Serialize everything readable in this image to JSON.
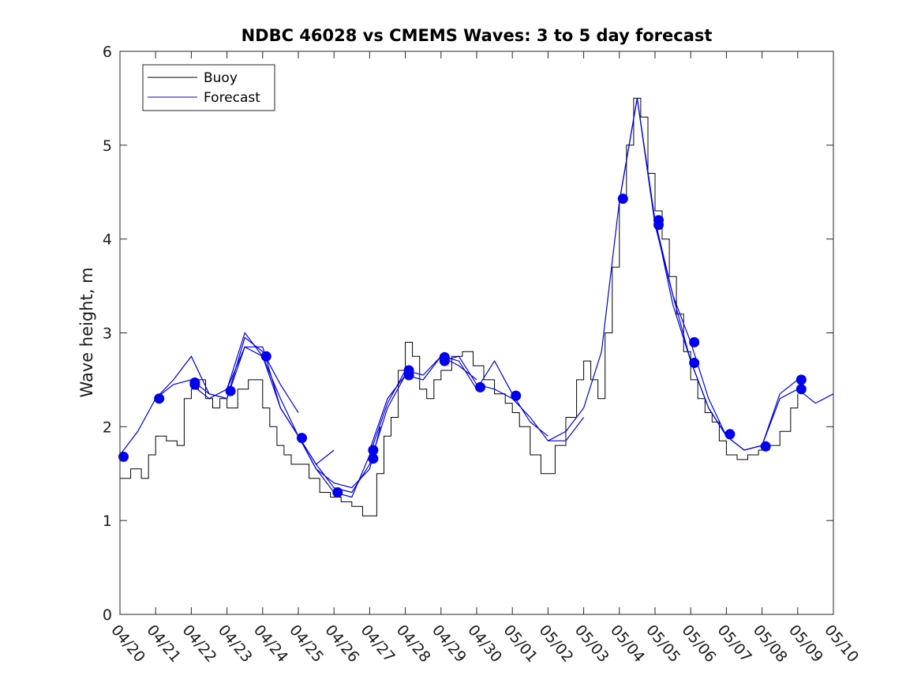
{
  "chart_data": {
    "type": "line",
    "title": "NDBC 46028 vs CMEMS Waves: 3 to 5 day forecast",
    "xlabel": "",
    "ylabel": "Wave height, m",
    "xlim": [
      0,
      20
    ],
    "ylim": [
      0,
      6
    ],
    "x_tick_labels": [
      "04/20",
      "04/21",
      "04/22",
      "04/23",
      "04/24",
      "04/25",
      "04/26",
      "04/27",
      "04/28",
      "04/29",
      "04/30",
      "05/01",
      "05/02",
      "05/03",
      "05/04",
      "05/05",
      "05/06",
      "05/07",
      "05/08",
      "05/09",
      "05/10"
    ],
    "y_ticks": [
      0,
      1,
      2,
      3,
      4,
      5,
      6
    ],
    "grid": false,
    "legend_position": "top-left",
    "legend": [
      {
        "label": "Buoy",
        "color": "#000000"
      },
      {
        "label": "Forecast",
        "color": "#0000dd"
      }
    ],
    "colors": {
      "buoy": "#000000",
      "forecast": "#0000dd",
      "marker": "#0000ee"
    },
    "buoy": {
      "name": "Buoy",
      "x": [
        0,
        0.3,
        0.6,
        0.8,
        1.0,
        1.3,
        1.6,
        1.8,
        2.0,
        2.2,
        2.4,
        2.6,
        2.8,
        3.0,
        3.3,
        3.6,
        3.8,
        4.0,
        4.2,
        4.4,
        4.6,
        4.8,
        5.0,
        5.3,
        5.6,
        5.9,
        6.2,
        6.5,
        6.8,
        7.0,
        7.2,
        7.4,
        7.6,
        7.8,
        8.0,
        8.2,
        8.4,
        8.6,
        8.8,
        9.0,
        9.3,
        9.6,
        9.9,
        10.2,
        10.5,
        10.8,
        11.0,
        11.2,
        11.5,
        11.8,
        12.0,
        12.2,
        12.5,
        12.8,
        13.0,
        13.2,
        13.4,
        13.6,
        13.8,
        14.0,
        14.2,
        14.4,
        14.6,
        14.8,
        15.0,
        15.2,
        15.4,
        15.6,
        15.8,
        16.0,
        16.2,
        16.4,
        16.6,
        16.8,
        17.0,
        17.3,
        17.6,
        17.9,
        18.2,
        18.5,
        18.8,
        19.0
      ],
      "y": [
        1.45,
        1.55,
        1.45,
        1.7,
        1.9,
        1.85,
        1.8,
        2.3,
        2.4,
        2.5,
        2.3,
        2.2,
        2.3,
        2.2,
        2.4,
        2.5,
        2.5,
        2.2,
        2.0,
        1.8,
        1.7,
        1.6,
        1.6,
        1.45,
        1.3,
        1.25,
        1.2,
        1.15,
        1.05,
        1.05,
        1.5,
        1.9,
        2.1,
        2.6,
        2.9,
        2.75,
        2.4,
        2.3,
        2.5,
        2.6,
        2.75,
        2.8,
        2.65,
        2.5,
        2.35,
        2.25,
        2.15,
        2.0,
        1.7,
        1.5,
        1.5,
        1.8,
        2.1,
        2.5,
        2.7,
        2.5,
        2.3,
        3.0,
        3.7,
        4.4,
        5.0,
        5.5,
        5.3,
        4.7,
        4.3,
        4.0,
        3.6,
        3.2,
        2.8,
        2.5,
        2.3,
        2.15,
        2.05,
        1.85,
        1.7,
        1.65,
        1.7,
        1.75,
        1.8,
        1.95,
        2.2,
        2.35
      ]
    },
    "forecast_series": [
      {
        "name": "Forecast",
        "x": [
          0,
          0.5,
          1.0,
          1.5,
          2.0,
          2.5,
          3.0,
          3.5,
          4.0,
          4.5,
          5.0
        ],
        "y": [
          1.7,
          1.95,
          2.3,
          2.45,
          2.5,
          2.35,
          2.3,
          2.95,
          2.8,
          2.45,
          2.15
        ]
      },
      {
        "name": "Forecast",
        "x": [
          1.0,
          1.5,
          2.0,
          2.5,
          3.0,
          3.5,
          4.0,
          4.5,
          5.0,
          5.5,
          6.0
        ],
        "y": [
          2.3,
          2.5,
          2.75,
          2.35,
          2.3,
          2.85,
          2.85,
          2.2,
          1.9,
          1.6,
          1.75
        ]
      },
      {
        "name": "Forecast",
        "x": [
          2.0,
          2.5,
          3.0,
          3.5,
          4.0,
          4.5,
          5.0,
          5.5,
          6.0,
          6.5,
          7.0,
          7.3
        ],
        "y": [
          2.45,
          2.3,
          2.4,
          3.0,
          2.75,
          2.3,
          1.9,
          1.55,
          1.4,
          1.35,
          1.55,
          2.0
        ]
      },
      {
        "name": "Forecast",
        "x": [
          3.0,
          3.5,
          4.0,
          4.5,
          5.0,
          5.5,
          6.0,
          6.5,
          7.0,
          7.5,
          8.0
        ],
        "y": [
          2.4,
          2.85,
          2.75,
          2.2,
          1.9,
          1.6,
          1.35,
          1.3,
          1.6,
          2.2,
          2.55
        ]
      },
      {
        "name": "Forecast",
        "x": [
          5.0,
          5.5,
          6.0,
          6.5,
          7.0,
          7.5,
          8.0,
          8.5,
          9.0,
          9.5,
          10.0
        ],
        "y": [
          1.9,
          1.55,
          1.3,
          1.25,
          1.7,
          2.25,
          2.6,
          2.55,
          2.75,
          2.65,
          2.5
        ]
      },
      {
        "name": "Forecast",
        "x": [
          7.0,
          7.5,
          8.0,
          8.5,
          9.0,
          9.5,
          10.0,
          10.5,
          11.0,
          11.5,
          12.0
        ],
        "y": [
          1.75,
          2.3,
          2.55,
          2.5,
          2.75,
          2.7,
          2.4,
          2.7,
          2.35,
          2.05,
          1.9
        ]
      },
      {
        "name": "Forecast",
        "x": [
          9.0,
          9.5,
          10.0,
          10.5,
          11.0,
          11.5,
          12.0,
          12.5,
          13.0
        ],
        "y": [
          2.7,
          2.75,
          2.45,
          2.4,
          2.3,
          2.1,
          1.85,
          1.85,
          2.1
        ]
      },
      {
        "name": "Forecast",
        "x": [
          12.0,
          12.5,
          13.0,
          13.5,
          14.0,
          14.5,
          15.0,
          15.5,
          16.0,
          16.5,
          17.0
        ],
        "y": [
          1.85,
          1.95,
          2.2,
          2.8,
          4.4,
          5.5,
          4.2,
          3.4,
          2.9,
          2.3,
          1.9
        ]
      },
      {
        "name": "Forecast",
        "x": [
          14.0,
          14.5,
          15.0,
          15.5,
          16.0,
          16.5,
          17.0,
          17.5,
          18.0,
          18.5,
          19.0
        ],
        "y": [
          4.4,
          5.5,
          4.15,
          3.4,
          2.7,
          2.2,
          1.9,
          1.75,
          1.8,
          2.35,
          2.5
        ]
      },
      {
        "name": "Forecast",
        "x": [
          15.0,
          15.5,
          16.0,
          16.5,
          17.0,
          17.5,
          18.0,
          18.5,
          19.0,
          19.5,
          20.0
        ],
        "y": [
          4.2,
          3.3,
          2.7,
          2.2,
          1.9,
          1.75,
          1.8,
          2.3,
          2.4,
          2.25,
          2.35
        ]
      }
    ],
    "markers": {
      "x": [
        0.1,
        1.1,
        2.1,
        2.1,
        3.1,
        4.1,
        5.1,
        6.1,
        7.1,
        7.1,
        8.1,
        8.1,
        9.1,
        9.1,
        10.1,
        11.1,
        14.1,
        15.1,
        15.1,
        16.1,
        16.1,
        17.1,
        18.1,
        19.1,
        19.1
      ],
      "y": [
        1.68,
        2.3,
        2.45,
        2.47,
        2.38,
        2.75,
        1.88,
        1.3,
        1.75,
        1.66,
        2.6,
        2.55,
        2.7,
        2.74,
        2.42,
        2.33,
        4.43,
        4.2,
        4.15,
        2.9,
        2.68,
        1.92,
        1.79,
        2.5,
        2.4
      ]
    }
  }
}
